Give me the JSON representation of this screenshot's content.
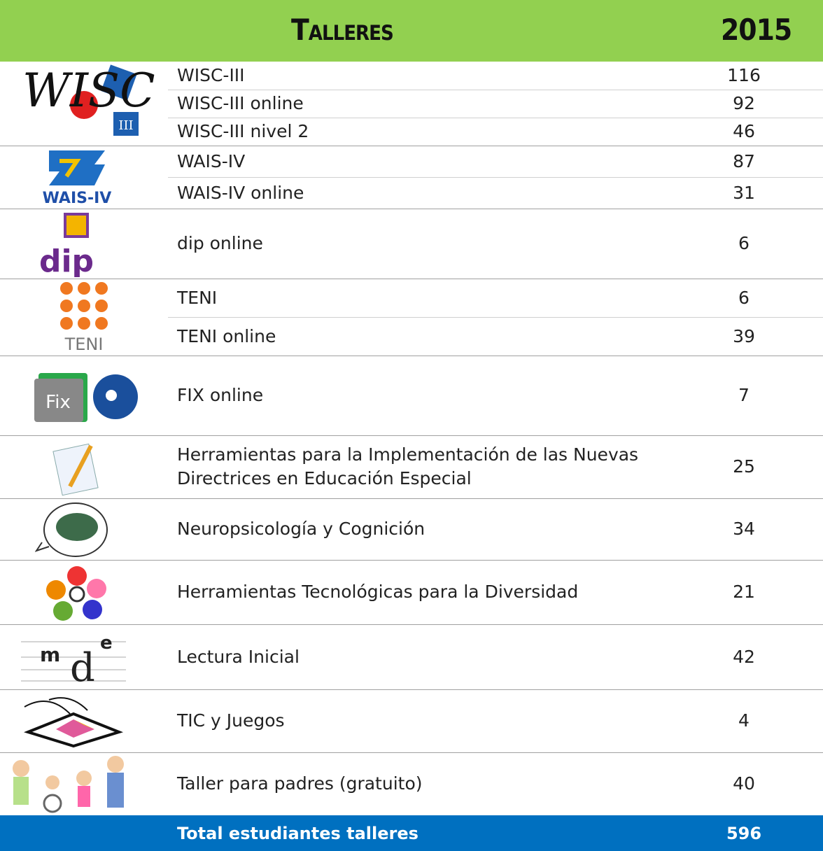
{
  "header": {
    "title": "Talleres",
    "year": "2015"
  },
  "groups": [
    {
      "logo_text": [
        "WISC",
        "III"
      ],
      "rows": [
        {
          "label": "WISC-III",
          "value": 116
        },
        {
          "label": "WISC-III online",
          "value": 92
        },
        {
          "label": "WISC-III nivel 2",
          "value": 46
        }
      ]
    },
    {
      "logo_text": [
        "WAIS-IV"
      ],
      "rows": [
        {
          "label": "WAIS-IV",
          "value": 87
        },
        {
          "label": "WAIS-IV online",
          "value": 31
        }
      ]
    },
    {
      "logo_text": [
        "dip"
      ],
      "rows": [
        {
          "label": "dip online",
          "value": 6
        }
      ]
    },
    {
      "logo_text": [
        "TENI"
      ],
      "rows": [
        {
          "label": "TENI",
          "value": 6
        },
        {
          "label": "TENI online",
          "value": 39
        }
      ]
    },
    {
      "logo_text": [
        "Fix"
      ],
      "rows": [
        {
          "label": "FIX online",
          "value": 7
        }
      ]
    },
    {
      "rows": [
        {
          "label": "Herramientas para la Implementación de las Nuevas Directrices en Educación Especial",
          "value": 25
        }
      ]
    },
    {
      "rows": [
        {
          "label": "Neuropsicología y Cognición",
          "value": 34
        }
      ]
    },
    {
      "rows": [
        {
          "label": "Herramientas Tecnológicas para la Diversidad",
          "value": 21
        }
      ]
    },
    {
      "logo_text": [
        "m",
        "d",
        "e"
      ],
      "rows": [
        {
          "label": "Lectura Inicial",
          "value": 42
        }
      ]
    },
    {
      "rows": [
        {
          "label": "TIC y Juegos",
          "value": 4
        }
      ]
    },
    {
      "rows": [
        {
          "label": "Taller para padres (gratuito)",
          "value": 40
        }
      ]
    }
  ],
  "total": {
    "label": "Total estudiantes talleres",
    "value": 596
  }
}
